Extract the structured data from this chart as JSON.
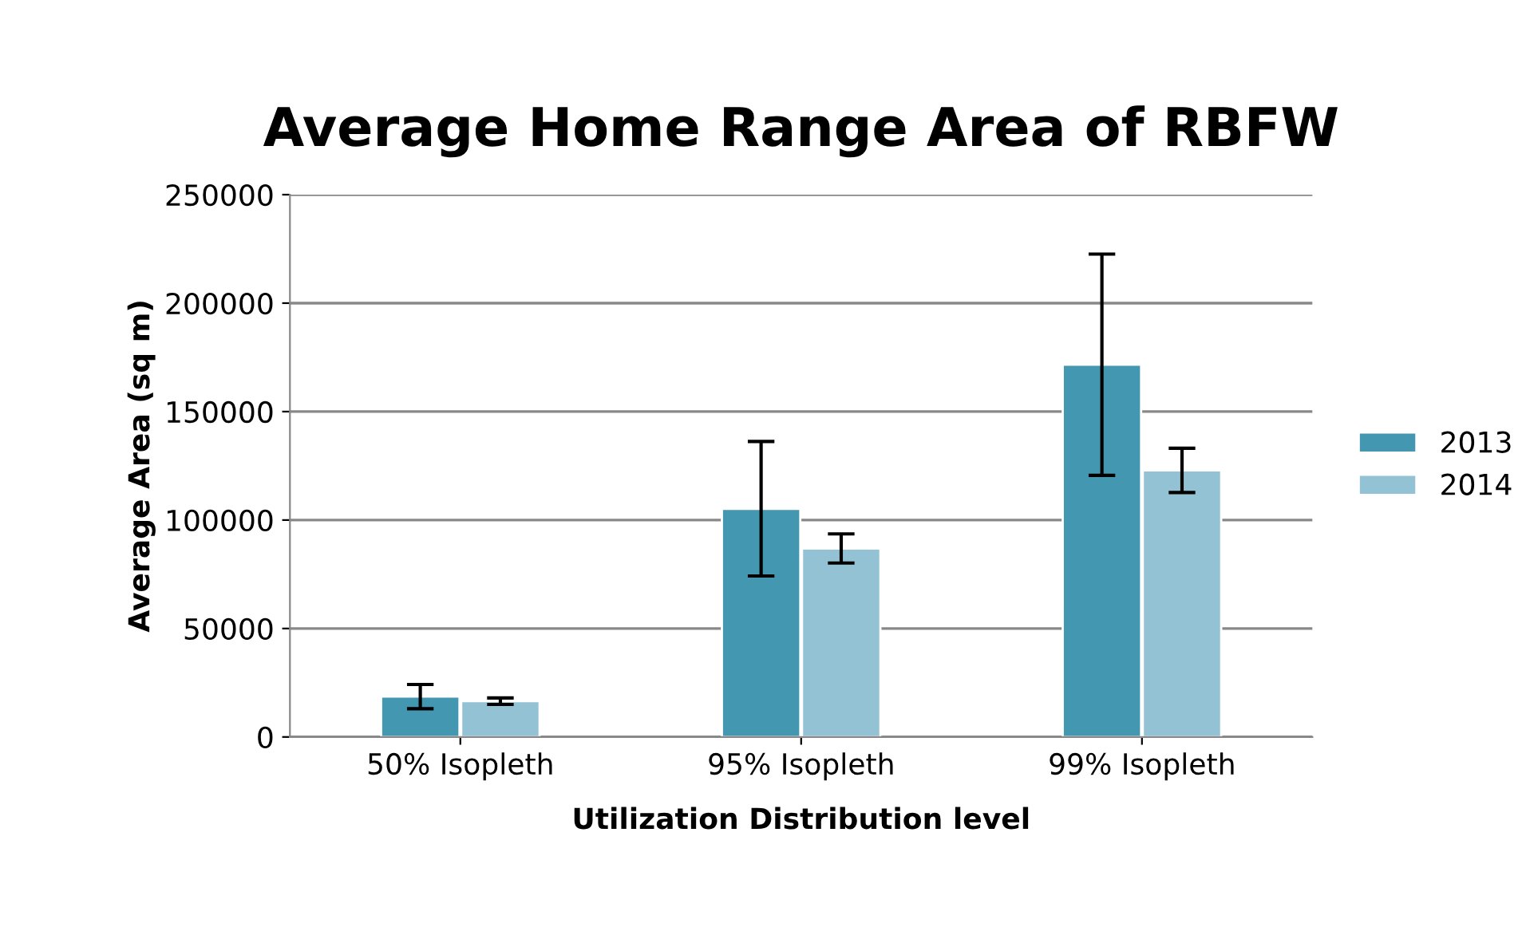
{
  "chart_data": {
    "type": "bar",
    "title": "Average Home Range Area of RBFW",
    "xlabel": "Utilization Distribution level",
    "ylabel": "Average Area (sq m)",
    "categories": [
      "50% Isopleth",
      "95% Isopleth",
      "99% Isopleth"
    ],
    "series": [
      {
        "name": "2013",
        "color": "#4397b0",
        "values": [
          18600,
          105200,
          171600
        ],
        "errors": [
          5600,
          31000,
          51000
        ]
      },
      {
        "name": "2014",
        "color": "#93c2d5",
        "values": [
          16500,
          86900,
          122900
        ],
        "errors": [
          1500,
          6700,
          10200
        ]
      }
    ],
    "ylim": [
      0,
      250000
    ],
    "yticks": [
      0,
      50000,
      100000,
      150000,
      200000,
      250000
    ],
    "grid": "y",
    "legend": "right"
  }
}
